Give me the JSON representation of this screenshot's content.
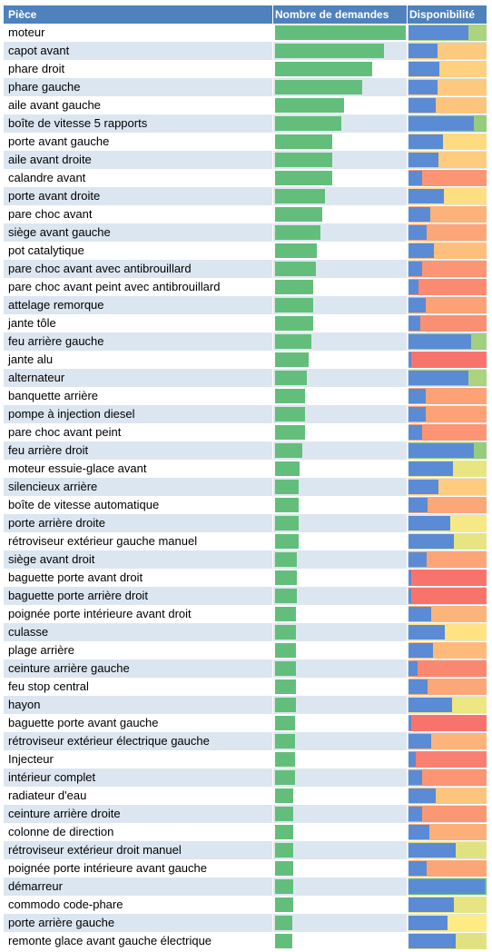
{
  "header": {
    "col1": "Pièce",
    "col2": "Nombre de demandes",
    "col3": "Disponibilité"
  },
  "colors": {
    "header_bg": "#4f81bd",
    "demand_bar": "#63be7b",
    "availability_bar": "#5b8bd4",
    "availability_scale": [
      "#f8696b",
      "#fcaa78",
      "#ffeb84",
      "#b1d580",
      "#63be7b"
    ]
  },
  "chart_data": {
    "type": "table",
    "columns": [
      "Pièce",
      "Nombre de demandes",
      "Disponibilité"
    ],
    "rows": [
      {
        "piece": "moteur",
        "demand": 100,
        "availability": 0.77
      },
      {
        "piece": "capot avant",
        "demand": 83,
        "availability": 0.37
      },
      {
        "piece": "phare droit",
        "demand": 74,
        "availability": 0.4
      },
      {
        "piece": "phare gauche",
        "demand": 67,
        "availability": 0.37
      },
      {
        "piece": "aile avant gauche",
        "demand": 53,
        "availability": 0.35
      },
      {
        "piece": "boîte de vitesse 5 rapports",
        "demand": 51,
        "availability": 0.84
      },
      {
        "piece": "porte avant gauche",
        "demand": 44,
        "availability": 0.44
      },
      {
        "piece": "aile avant droite",
        "demand": 44,
        "availability": 0.38
      },
      {
        "piece": "calandre avant",
        "demand": 44,
        "availability": 0.17
      },
      {
        "piece": "porte avant droite",
        "demand": 38,
        "availability": 0.45
      },
      {
        "piece": "pare choc avant",
        "demand": 36,
        "availability": 0.28
      },
      {
        "piece": "siège avant gauche",
        "demand": 35,
        "availability": 0.23
      },
      {
        "piece": "pot catalytique",
        "demand": 32,
        "availability": 0.33
      },
      {
        "piece": "pare choc avant avec antibrouillard",
        "demand": 31,
        "availability": 0.17
      },
      {
        "piece": "pare choc avant peint avec antibrouillard",
        "demand": 29,
        "availability": 0.13
      },
      {
        "piece": "attelage remorque",
        "demand": 29,
        "availability": 0.22
      },
      {
        "piece": "jante tôle",
        "demand": 29,
        "availability": 0.15
      },
      {
        "piece": "feu arrière gauche",
        "demand": 28,
        "availability": 0.8
      },
      {
        "piece": "jante alu",
        "demand": 26,
        "availability": 0.04
      },
      {
        "piece": "alternateur",
        "demand": 24,
        "availability": 0.77
      },
      {
        "piece": "banquette arrière",
        "demand": 23,
        "availability": 0.22
      },
      {
        "piece": "pompe à injection diesel",
        "demand": 23,
        "availability": 0.22
      },
      {
        "piece": "pare choc avant peint",
        "demand": 23,
        "availability": 0.17
      },
      {
        "piece": "feu arrière droit",
        "demand": 21,
        "availability": 0.84
      },
      {
        "piece": "moteur essuie-glace avant",
        "demand": 19,
        "availability": 0.57
      },
      {
        "piece": "silencieux arrière",
        "demand": 18,
        "availability": 0.38
      },
      {
        "piece": "boîte de vitesse automatique",
        "demand": 18,
        "availability": 0.24
      },
      {
        "piece": "porte arrière droite",
        "demand": 18,
        "availability": 0.53
      },
      {
        "piece": "rétroviseur extérieur gauche manuel",
        "demand": 18,
        "availability": 0.58
      },
      {
        "piece": "siège avant droit",
        "demand": 17,
        "availability": 0.23
      },
      {
        "piece": "baguette porte avant droit",
        "demand": 17,
        "availability": 0.04
      },
      {
        "piece": "baguette porte arrière droit",
        "demand": 17,
        "availability": 0.04
      },
      {
        "piece": "poignée porte intérieure avant droit",
        "demand": 16,
        "availability": 0.29
      },
      {
        "piece": "culasse",
        "demand": 16,
        "availability": 0.47
      },
      {
        "piece": "plage arrière",
        "demand": 16,
        "availability": 0.31
      },
      {
        "piece": "ceinture arrière gauche",
        "demand": 16,
        "availability": 0.12
      },
      {
        "piece": "feu stop central",
        "demand": 16,
        "availability": 0.24
      },
      {
        "piece": "hayon",
        "demand": 16,
        "availability": 0.56
      },
      {
        "piece": "baguette porte avant gauche",
        "demand": 15,
        "availability": 0.04
      },
      {
        "piece": "rétroviseur extérieur électrique gauche",
        "demand": 15,
        "availability": 0.29
      },
      {
        "piece": "Injecteur",
        "demand": 15,
        "availability": 0.09
      },
      {
        "piece": "intérieur complet",
        "demand": 15,
        "availability": 0.17
      },
      {
        "piece": "radiateur d'eau",
        "demand": 14,
        "availability": 0.35
      },
      {
        "piece": "ceinture arrière droite",
        "demand": 14,
        "availability": 0.18
      },
      {
        "piece": "colonne de direction",
        "demand": 14,
        "availability": 0.27
      },
      {
        "piece": "rétroviseur extérieur droit manuel",
        "demand": 14,
        "availability": 0.6
      },
      {
        "piece": "poignée porte intérieure avant gauche",
        "demand": 14,
        "availability": 0.23
      },
      {
        "piece": "démarreur",
        "demand": 14,
        "availability": 0.98
      },
      {
        "piece": "commodo code-phare",
        "demand": 14,
        "availability": 0.58
      },
      {
        "piece": "porte arrière gauche",
        "demand": 13,
        "availability": 0.5
      },
      {
        "piece": "remonte glace avant gauche électrique",
        "demand": 13,
        "availability": 0.6
      }
    ]
  }
}
